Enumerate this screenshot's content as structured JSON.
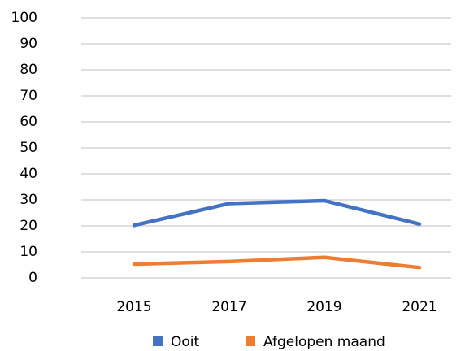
{
  "chart_data": {
    "type": "line",
    "categories": [
      "2015",
      "2017",
      "2019",
      "2021"
    ],
    "series": [
      {
        "name": "Ooit",
        "color": "#4472c4",
        "values": [
          20.2,
          28.6,
          29.7,
          20.7
        ]
      },
      {
        "name": "Afgelopen maand",
        "color": "#ed7d31",
        "values": [
          5.3,
          6.3,
          7.9,
          4.0
        ]
      }
    ],
    "ylim": [
      0,
      100
    ],
    "yticks": [
      0,
      10,
      20,
      30,
      40,
      50,
      60,
      70,
      80,
      90,
      100
    ],
    "grid": true,
    "legend": "bottom"
  }
}
